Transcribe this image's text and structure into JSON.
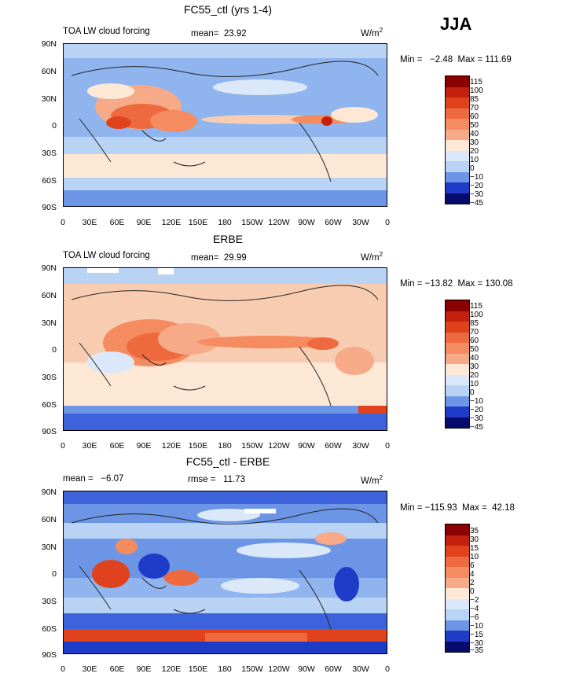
{
  "season": "JJA",
  "panels": [
    {
      "title": "FC55_ctl (yrs 1-4)",
      "left_label": "TOA LW cloud forcing",
      "mean_label": "mean=  23.92",
      "units": "W/m",
      "units_exp": "2",
      "minmax": "Min =   −2.48  Max = 111.69",
      "colorbar": [
        "115",
        "100",
        "85",
        "70",
        "60",
        "50",
        "40",
        "30",
        "20",
        "10",
        "0",
        "−10",
        "−20",
        "−30",
        "−45"
      ]
    },
    {
      "title": "ERBE",
      "left_label": "TOA LW cloud forcing",
      "mean_label": "mean=  29.99",
      "units": "W/m",
      "units_exp": "2",
      "minmax": "Min = −13.82  Max = 130.08",
      "colorbar": [
        "115",
        "100",
        "85",
        "70",
        "60",
        "50",
        "40",
        "30",
        "20",
        "10",
        "0",
        "−10",
        "−20",
        "−30",
        "−45"
      ]
    },
    {
      "title": "FC55_ctl - ERBE",
      "left_label": "mean =   −6.07",
      "mean_label": "rmse =   11.73",
      "units": "W/m",
      "units_exp": "2",
      "minmax": "Min = −115.93  Max =  42.18",
      "colorbar": [
        "35",
        "30",
        "15",
        "10",
        "6",
        "4",
        "2",
        "0",
        "−2",
        "−4",
        "−6",
        "−10",
        "−15",
        "−30",
        "−35"
      ]
    }
  ],
  "lat_ticks": [
    "90N",
    "60N",
    "30N",
    "0",
    "30S",
    "60S",
    "90S"
  ],
  "lon_ticks": [
    "0",
    "30E",
    "60E",
    "90E",
    "120E",
    "150E",
    "180",
    "150W",
    "120W",
    "90W",
    "60W",
    "30W",
    "0"
  ],
  "colors": {
    "full_scale": [
      "#8b0000",
      "#c4200f",
      "#e0421e",
      "#ee6a3e",
      "#f48c60",
      "#f6aa88",
      "#f8ccb0",
      "#fde8d6",
      "#dbe8fa",
      "#b9d3f5",
      "#8fb4ee",
      "#6c95e6",
      "#3c63dc",
      "#1f3cc8",
      "#0e1a9e",
      "#070a6e"
    ],
    "diff_scale": [
      "#8b0000",
      "#c4200f",
      "#e0421e",
      "#ee6a3e",
      "#f48c60",
      "#f6aa88",
      "#f8ccb0",
      "#fde8d6",
      "#dbe8fa",
      "#b9d3f5",
      "#8fb4ee",
      "#6c95e6",
      "#3c63dc",
      "#1f3cc8",
      "#0e1a9e",
      "#070a6e"
    ]
  }
}
